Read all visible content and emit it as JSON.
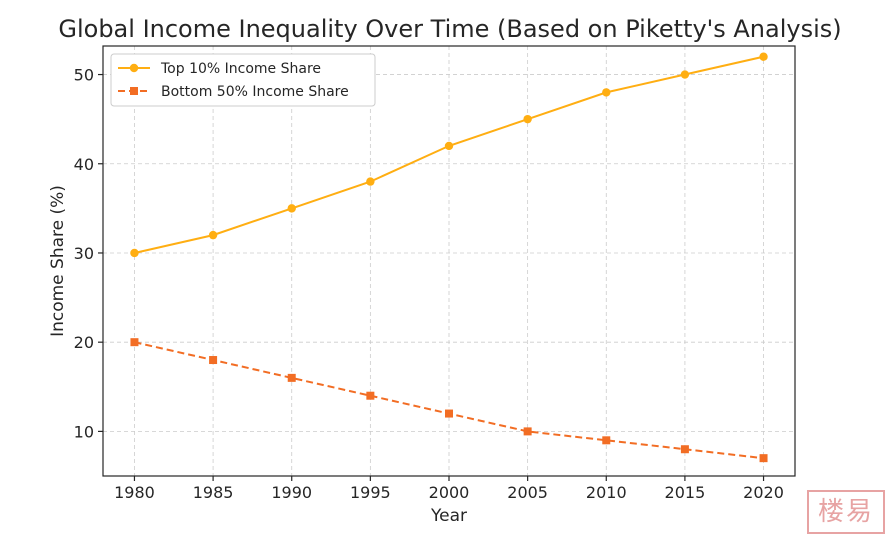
{
  "chart_data": {
    "type": "line",
    "title": "Global Income Inequality Over Time (Based on Piketty's Analysis)",
    "xlabel": "Year",
    "ylabel": "Income Share (%)",
    "x": [
      1980,
      1985,
      1990,
      1995,
      2000,
      2005,
      2010,
      2015,
      2020
    ],
    "x_ticks": [
      "1980",
      "1985",
      "1990",
      "1995",
      "2000",
      "2005",
      "2010",
      "2015",
      "2020"
    ],
    "y_ticks": [
      "10",
      "20",
      "30",
      "40",
      "50"
    ],
    "xlim": [
      1978,
      2022
    ],
    "ylim": [
      5,
      53.2
    ],
    "grid": true,
    "legend_position": "top-left",
    "series": [
      {
        "name": "Top 10% Income Share",
        "values": [
          30,
          32,
          35,
          38,
          42,
          45,
          48,
          50,
          52
        ],
        "color": "#ffae12",
        "line_style": "solid",
        "marker": "circle"
      },
      {
        "name": "Bottom 50% Income Share",
        "values": [
          20,
          18,
          16,
          14,
          12,
          10,
          9,
          8,
          7
        ],
        "color": "#f26d24",
        "line_style": "dashed",
        "marker": "square"
      }
    ]
  },
  "watermark": {
    "text": "楼易",
    "color": "#e7a3a3"
  }
}
